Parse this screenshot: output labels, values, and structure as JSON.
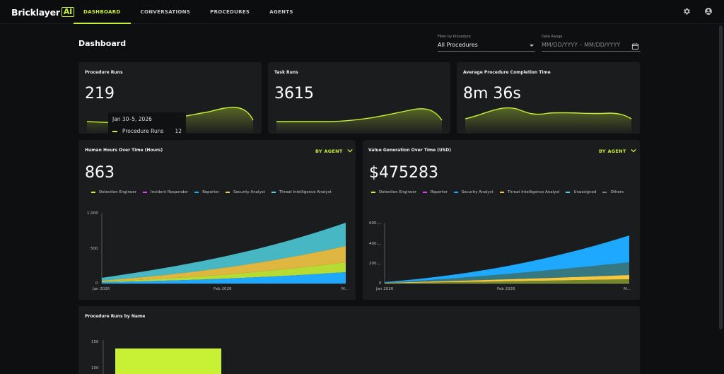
{
  "app": {
    "logo_text": "Bricklayer",
    "logo_badge": "AI"
  },
  "nav": {
    "tabs": [
      {
        "label": "DASHBOARD",
        "active": true
      },
      {
        "label": "CONVERSATIONS"
      },
      {
        "label": "PROCEDURES"
      },
      {
        "label": "AGENTS"
      }
    ]
  },
  "page": {
    "title": "Dashboard"
  },
  "filters": {
    "procedure_label": "Filter by Procedure",
    "procedure_value": "All Procedures",
    "date_label": "Date Range",
    "date_placeholder": "MM/DD/YYYY – MM/DD/YYYY"
  },
  "kpis": [
    {
      "title": "Procedure Runs",
      "value": "219"
    },
    {
      "title": "Task Runs",
      "value": "3615"
    },
    {
      "title": "Average Procedure Completion Time",
      "value": "8m 36s"
    }
  ],
  "tooltip": {
    "date": "Jan 30–5, 2026",
    "series": "Procedure Runs",
    "value": "12"
  },
  "human_hours": {
    "title": "Human Hours Over Time (Hours)",
    "value": "863",
    "dropdown": "BY AGENT",
    "legend": [
      {
        "name": "Detection Engineer",
        "color": "#c8f135"
      },
      {
        "name": "Incident Responder",
        "color": "#e040fb"
      },
      {
        "name": "Reporter",
        "color": "#1ea8ff"
      },
      {
        "name": "Security Analyst",
        "color": "#f5c842"
      },
      {
        "name": "Threat Intelligence Analyst",
        "color": "#4fd3e0"
      }
    ],
    "y_ticks": [
      "1,000",
      "500",
      "0"
    ],
    "x_ticks": [
      "Jan 2026",
      "Feb 2026",
      "M..."
    ]
  },
  "value_gen": {
    "title": "Value Generation Over Time (USD)",
    "value": "$475283",
    "dropdown": "BY AGENT",
    "legend": [
      {
        "name": "Detection Engineer",
        "color": "#c8f135"
      },
      {
        "name": "Reporter",
        "color": "#e040fb"
      },
      {
        "name": "Security Analyst",
        "color": "#1ea8ff"
      },
      {
        "name": "Threat Intelligence Analyst",
        "color": "#f5c842"
      },
      {
        "name": "Unassigned",
        "color": "#4fd3e0"
      },
      {
        "name": "Others",
        "color": "#7b7b7b"
      }
    ],
    "y_ticks": [
      "600,...",
      "400,...",
      "200,...",
      "0"
    ],
    "x_ticks": [
      "Jan 2026",
      "Feb 2026",
      "M..."
    ]
  },
  "runs_by_name": {
    "title": "Procedure Runs by Name",
    "y_ticks": [
      "150",
      "100"
    ],
    "bar_value": 138,
    "bar_color": "#c8f135"
  },
  "colors": {
    "accent": "#c8f135"
  }
}
